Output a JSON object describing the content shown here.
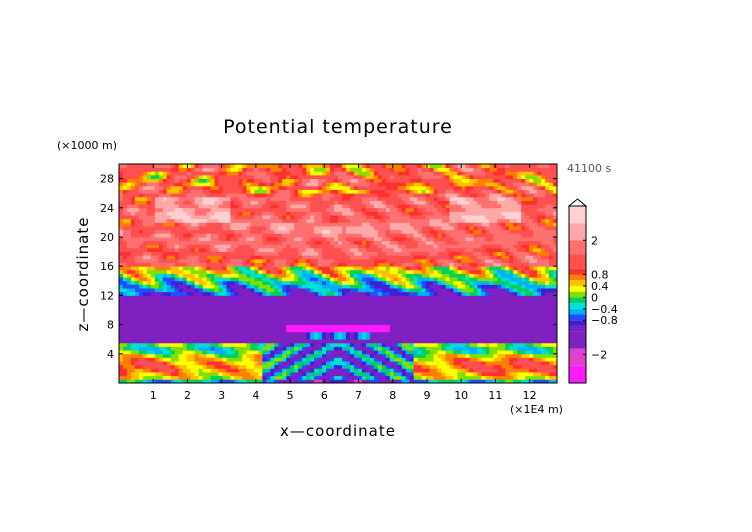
{
  "chart_data": {
    "type": "heatmap",
    "title": "Potential temperature",
    "xlabel": "x—coordinate",
    "ylabel": "z—coordinate",
    "x_unit": "(×1E4 m)",
    "y_unit": "(×1000 m)",
    "time_label": "41100 s",
    "xlim": [
      0,
      12.8
    ],
    "ylim": [
      0,
      30
    ],
    "x_ticks": [
      1,
      2,
      3,
      4,
      5,
      6,
      7,
      8,
      9,
      10,
      11,
      12
    ],
    "x_tick_labels": [
      "1",
      "2",
      "3",
      "4",
      "5",
      "6",
      "7",
      "8",
      "9",
      "10",
      "11",
      "12"
    ],
    "y_ticks": [
      4,
      8,
      12,
      16,
      20,
      24,
      28
    ],
    "y_tick_labels": [
      "4",
      "8",
      "12",
      "16",
      "20",
      "24",
      "28"
    ],
    "colorbar": {
      "levels": [
        -3.0,
        -2.4,
        -1.8,
        -1.2,
        -1.0,
        -0.8,
        -0.6,
        -0.4,
        -0.2,
        0,
        0.2,
        0.4,
        0.6,
        0.8,
        1.0,
        1.5,
        2.0,
        2.6,
        3.2
      ],
      "colors": [
        "#ff1aff",
        "#e040d0",
        "#8020c0",
        "#7a1ec8",
        "#4020d0",
        "#2050ff",
        "#00b0ff",
        "#00e0d0",
        "#00d060",
        "#80e000",
        "#ffff00",
        "#ffc000",
        "#ff8000",
        "#ff3030",
        "#ff5050",
        "#ff7070",
        "#ffa8a8",
        "#ffd0d0"
      ],
      "tick_values": [
        2,
        0.8,
        0.4,
        0,
        -0.4,
        -0.8,
        -2
      ],
      "tick_labels": [
        "2",
        "0.8",
        "0.4",
        "0",
        "−0.4",
        "−0.8",
        "−2"
      ],
      "extend": "max"
    },
    "field_description_bands": [
      {
        "z_range": [
          0,
          5.5
        ],
        "value_range": [
          -0.8,
          1.5
        ]
      },
      {
        "z_range": [
          5.5,
          12
        ],
        "value_range": [
          -1.8,
          -1.0
        ]
      },
      {
        "z_range": [
          12,
          16
        ],
        "value_range": [
          -0.8,
          0.8
        ]
      },
      {
        "z_range": [
          16,
          30
        ],
        "value_range": [
          0.4,
          3.0
        ]
      }
    ]
  }
}
